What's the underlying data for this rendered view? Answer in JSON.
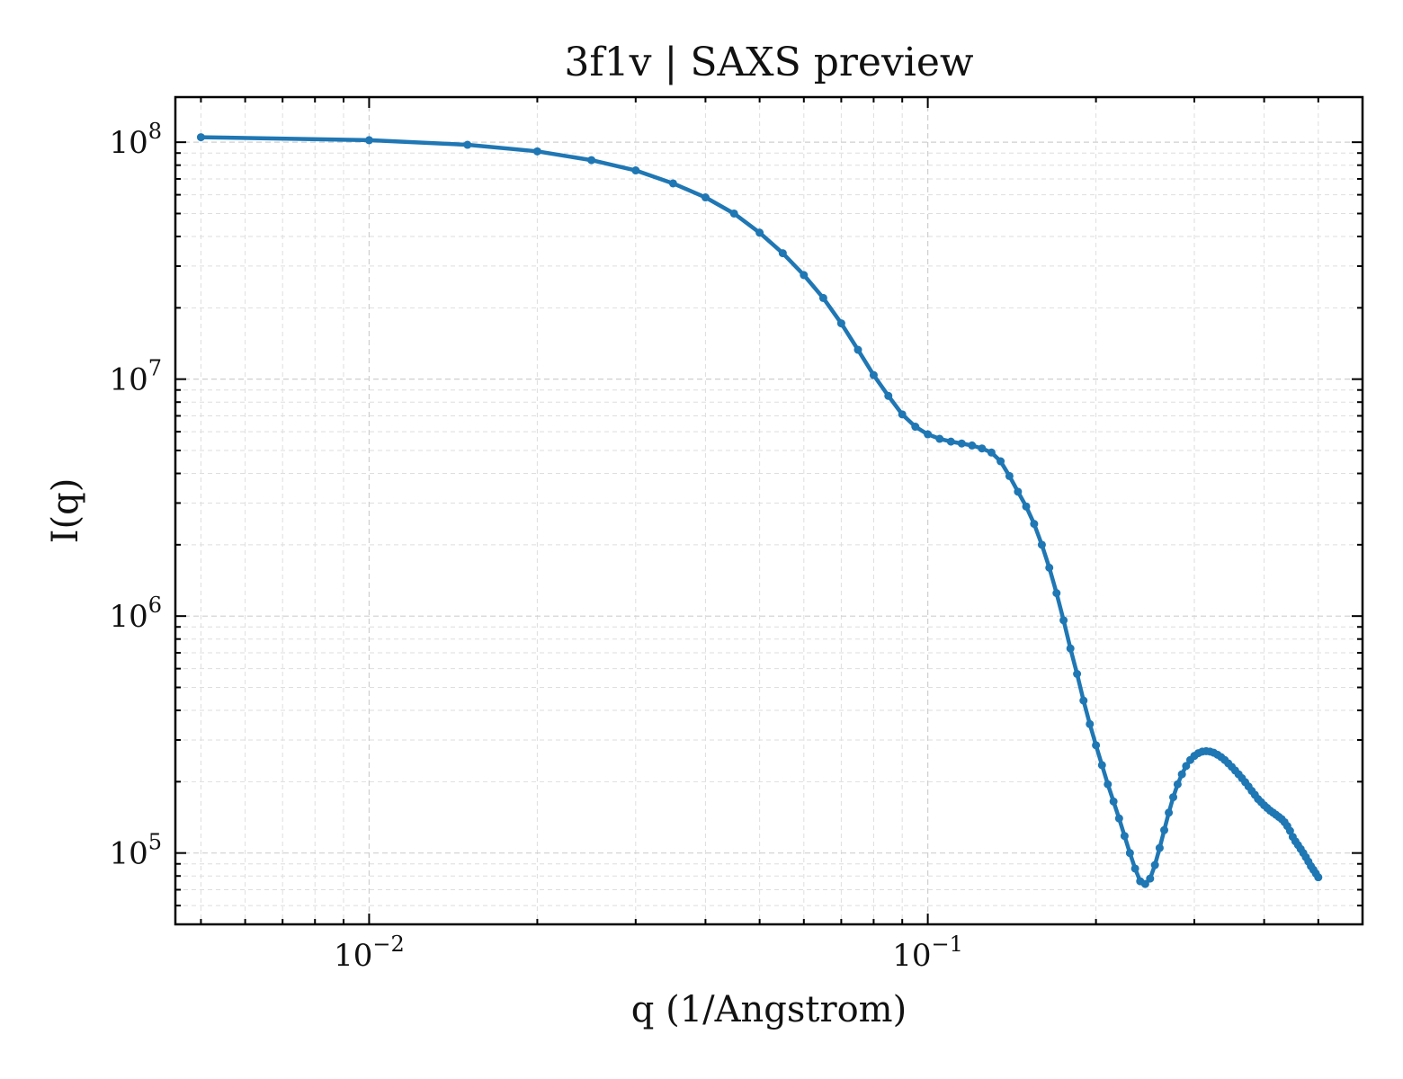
{
  "chart_data": {
    "type": "line",
    "title": "3f1v | SAXS preview",
    "xlabel": "q (1/Angstrom)",
    "ylabel": "I(q)",
    "xscale": "log",
    "yscale": "log",
    "xlim": [
      0.0045,
      0.6
    ],
    "ylim": [
      50000,
      155000000
    ],
    "grid": true,
    "color": "#1f77b4",
    "x_ticks": [
      {
        "value": 0.01,
        "base": "10",
        "exp": "−2"
      },
      {
        "value": 0.1,
        "base": "10",
        "exp": "−1"
      }
    ],
    "y_ticks": [
      {
        "value": 100000,
        "base": "10",
        "exp": "5"
      },
      {
        "value": 1000000,
        "base": "10",
        "exp": "6"
      },
      {
        "value": 10000000,
        "base": "10",
        "exp": "7"
      },
      {
        "value": 100000000,
        "base": "10",
        "exp": "8"
      }
    ],
    "series": [
      {
        "x": [
          0.005,
          0.01,
          0.015,
          0.02,
          0.025,
          0.03,
          0.035,
          0.04,
          0.045,
          0.05,
          0.055,
          0.06,
          0.065,
          0.07,
          0.075,
          0.08,
          0.085,
          0.09,
          0.095,
          0.1,
          0.105,
          0.11,
          0.115,
          0.12,
          0.125,
          0.13,
          0.135,
          0.14,
          0.145,
          0.15,
          0.155,
          0.16,
          0.165,
          0.17,
          0.175,
          0.18,
          0.185,
          0.19,
          0.195,
          0.2,
          0.205,
          0.21,
          0.215,
          0.22,
          0.225,
          0.23,
          0.235,
          0.24,
          0.245,
          0.25,
          0.255,
          0.26,
          0.265,
          0.27,
          0.275,
          0.28,
          0.285,
          0.29,
          0.295,
          0.3,
          0.305,
          0.31,
          0.315,
          0.32,
          0.325,
          0.33,
          0.335,
          0.34,
          0.345,
          0.35,
          0.355,
          0.36,
          0.365,
          0.37,
          0.375,
          0.38,
          0.385,
          0.39,
          0.395,
          0.4,
          0.405,
          0.41,
          0.415,
          0.42,
          0.425,
          0.43,
          0.435,
          0.44,
          0.445,
          0.45,
          0.455,
          0.46,
          0.465,
          0.47,
          0.475,
          0.48,
          0.485,
          0.49,
          0.495,
          0.5
        ],
        "y": [
          105000000,
          102000000,
          97500000,
          91500000,
          84000000,
          76000000,
          67000000,
          58500000,
          50000000,
          41500000,
          34000000,
          27500000,
          22000000,
          17200000,
          13300000,
          10400000,
          8500000,
          7100000,
          6300000,
          5850000,
          5600000,
          5450000,
          5350000,
          5250000,
          5100000,
          4900000,
          4500000,
          3900000,
          3350000,
          2900000,
          2450000,
          2000000,
          1600000,
          1250000,
          960000,
          730000,
          570000,
          440000,
          350000,
          285000,
          235000,
          195000,
          165000,
          140000,
          118000,
          100000,
          86000,
          76000,
          74000,
          78000,
          89000,
          105000,
          125000,
          148000,
          172000,
          195000,
          215000,
          233000,
          247000,
          257000,
          264000,
          268000,
          269000,
          268000,
          265000,
          260000,
          254000,
          247000,
          239000,
          231000,
          223000,
          215000,
          207000,
          199000,
          191000,
          183000,
          176000,
          169000,
          164000,
          159000,
          155000,
          151000,
          148000,
          145000,
          142000,
          139000,
          135000,
          130000,
          124000,
          117000,
          112000,
          108000,
          104000,
          100000,
          96000,
          92000,
          88000,
          85000,
          82000,
          79000
        ]
      }
    ]
  }
}
